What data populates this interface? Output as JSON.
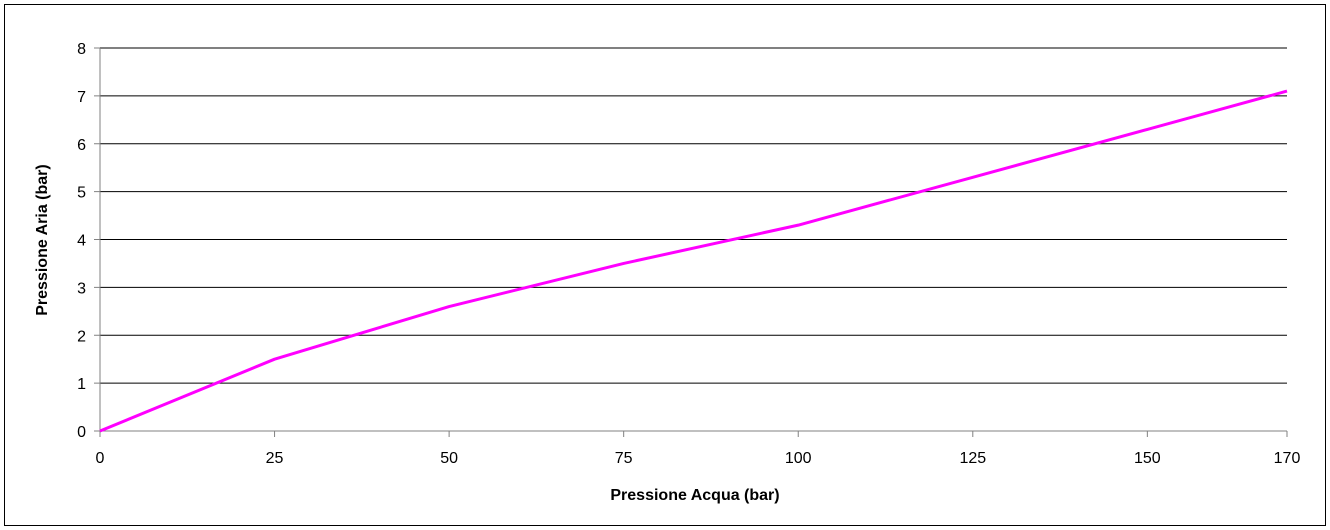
{
  "chart_data": {
    "type": "line",
    "title": "",
    "xlabel": "Pressione Acqua (bar)",
    "ylabel": "Pressione Aria (bar)",
    "x_ticks": [
      0,
      25,
      50,
      75,
      100,
      125,
      150,
      170
    ],
    "y_ticks": [
      0,
      1,
      2,
      3,
      4,
      5,
      6,
      7,
      8
    ],
    "xlim": [
      0,
      170
    ],
    "ylim": [
      0,
      8
    ],
    "grid": "horizontal",
    "legend": "none",
    "colors": {
      "line": "#FF00FF",
      "grid": "#000000",
      "axis": "#808080"
    },
    "series": [
      {
        "x": [
          0,
          25,
          50,
          75,
          100,
          125,
          150,
          170
        ],
        "y": [
          0,
          1.5,
          2.6,
          3.5,
          4.3,
          5.3,
          6.3,
          7.1
        ]
      }
    ]
  }
}
